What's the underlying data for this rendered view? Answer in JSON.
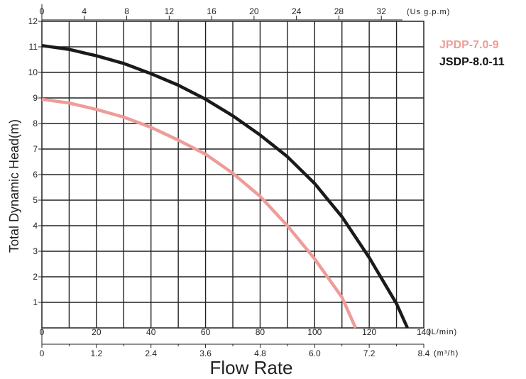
{
  "chart_data": {
    "type": "line",
    "title": "",
    "xlabel": "Flow Rate",
    "ylabel": "Total Dynamic Head(m)",
    "grid": true,
    "legend_position": "top-right",
    "y_axis": {
      "range": [
        0,
        12
      ],
      "ticks": [
        "1",
        "2",
        "3",
        "4",
        "5",
        "6",
        "7",
        "8",
        "9",
        "10",
        "11",
        "12"
      ]
    },
    "x_axis_top": {
      "range": [
        0,
        36
      ],
      "ticks": [
        "0",
        "4",
        "8",
        "12",
        "16",
        "20",
        "24",
        "28",
        "32"
      ],
      "unit": "(Us g.p.m)"
    },
    "x_axis_lpm": {
      "range": [
        0,
        140
      ],
      "ticks": [
        "0",
        "20",
        "40",
        "60",
        "80",
        "100",
        "120",
        "140"
      ],
      "unit": "(L/min)"
    },
    "x_axis_m3h": {
      "range": [
        0,
        8.4
      ],
      "ticks": [
        "0",
        "1.2",
        "2.4",
        "3.6",
        "4.8",
        "6.0",
        "7.2",
        "8.4"
      ],
      "unit": "(m³/h)"
    },
    "series": [
      {
        "name": "JPDP-7.0-9",
        "color": "#ee9c98",
        "x": [
          0,
          10,
          20,
          30,
          40,
          50,
          60,
          70,
          80,
          90,
          100,
          110,
          115
        ],
        "y": [
          8.95,
          8.8,
          8.55,
          8.25,
          7.85,
          7.35,
          6.8,
          6.05,
          5.15,
          4.0,
          2.7,
          1.2,
          0.0
        ]
      },
      {
        "name": "JSDP-8.0-11",
        "color": "#1a1a1a",
        "x": [
          0,
          10,
          20,
          30,
          40,
          50,
          60,
          70,
          80,
          90,
          100,
          110,
          120,
          130,
          134
        ],
        "y": [
          11.05,
          10.9,
          10.65,
          10.35,
          9.95,
          9.5,
          8.95,
          8.3,
          7.55,
          6.7,
          5.65,
          4.35,
          2.75,
          0.95,
          0.0
        ]
      }
    ]
  }
}
